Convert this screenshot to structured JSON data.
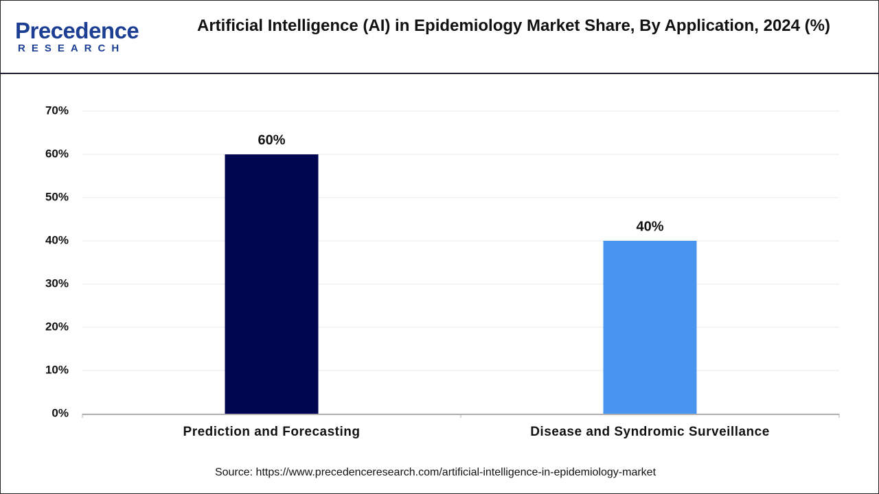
{
  "logo": {
    "name": "Precedence",
    "sub": "RESEARCH"
  },
  "chart_data": {
    "type": "bar",
    "title": "Artificial Intelligence (AI) in Epidemiology Market Share, By Application, 2024 (%)",
    "categories": [
      "Prediction and Forecasting",
      "Disease and Syndromic Surveillance"
    ],
    "values": [
      60,
      40
    ],
    "value_labels": [
      "60%",
      "40%"
    ],
    "colors": [
      "#00064f",
      "#4894ef"
    ],
    "ylim": [
      0,
      70
    ],
    "yticks": [
      {
        "value": 0,
        "label": "0%"
      },
      {
        "value": 10,
        "label": "10%"
      },
      {
        "value": 20,
        "label": "20%"
      },
      {
        "value": 30,
        "label": "30%"
      },
      {
        "value": 40,
        "label": "40%"
      },
      {
        "value": 50,
        "label": "50%"
      },
      {
        "value": 60,
        "label": "60%"
      },
      {
        "value": 70,
        "label": "70%"
      }
    ],
    "grid": true,
    "source": "Source: https://www.precedenceresearch.com/artificial-intelligence-in-epidemiology-market"
  }
}
